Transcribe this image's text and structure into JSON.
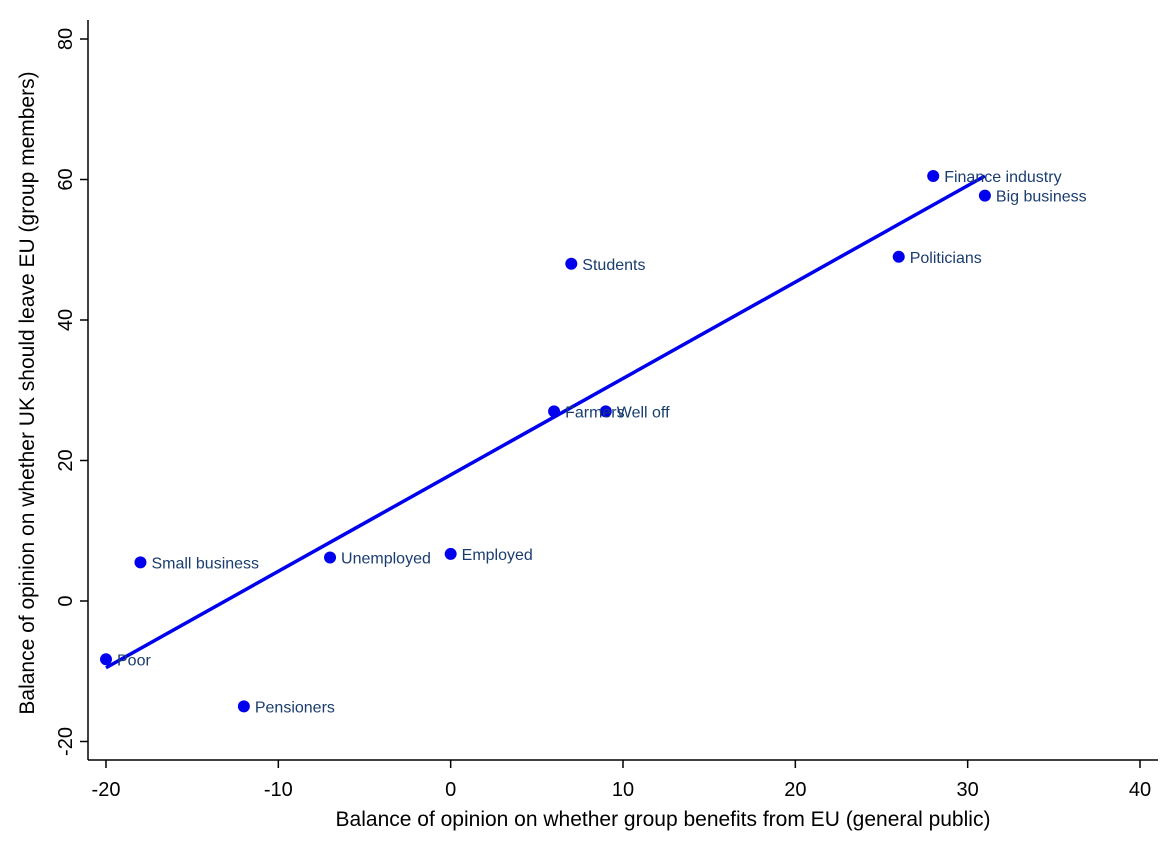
{
  "chart_data": {
    "type": "scatter",
    "title": "",
    "xlabel": "Balance of opinion on whether group benefits from EU (general public)",
    "ylabel": "Balance of opinion on whether UK should leave EU (group members)",
    "xlim": [
      -21,
      41
    ],
    "ylim": [
      -24,
      83
    ],
    "xticks": [
      -20,
      -10,
      0,
      10,
      20,
      30,
      40
    ],
    "yticks": [
      -20,
      0,
      20,
      40,
      60,
      80
    ],
    "xtick_labels": [
      "-20",
      "-10",
      "0",
      "10",
      "20",
      "30",
      "40"
    ],
    "ytick_labels": [
      "-20",
      "0",
      "20",
      "40",
      "60",
      "80"
    ],
    "grid": false,
    "points": [
      {
        "label": "Finance industry",
        "x": 28,
        "y": 60.5
      },
      {
        "label": "Big business",
        "x": 31,
        "y": 57.7
      },
      {
        "label": "Politicians",
        "x": 26,
        "y": 49
      },
      {
        "label": "Students",
        "x": 7,
        "y": 48
      },
      {
        "label": "Farmers",
        "x": 6,
        "y": 27
      },
      {
        "label": "Well off",
        "x": 9,
        "y": 27
      },
      {
        "label": "Employed",
        "x": 0,
        "y": 6.7
      },
      {
        "label": "Unemployed",
        "x": -7,
        "y": 6.2
      },
      {
        "label": "Small business",
        "x": -18,
        "y": 5.5
      },
      {
        "label": "Poor",
        "x": -20,
        "y": -8.3
      },
      {
        "label": "Pensioners",
        "x": -12,
        "y": -15
      }
    ],
    "fit_line": {
      "name": "Linear fit",
      "x": [
        -20,
        31
      ],
      "y": [
        -9.5,
        60.5
      ]
    }
  },
  "colors": {
    "marker": "#0000ee",
    "fit_line": "#0000ee",
    "point_label": "#1a3d6e",
    "axis": "#000000"
  }
}
